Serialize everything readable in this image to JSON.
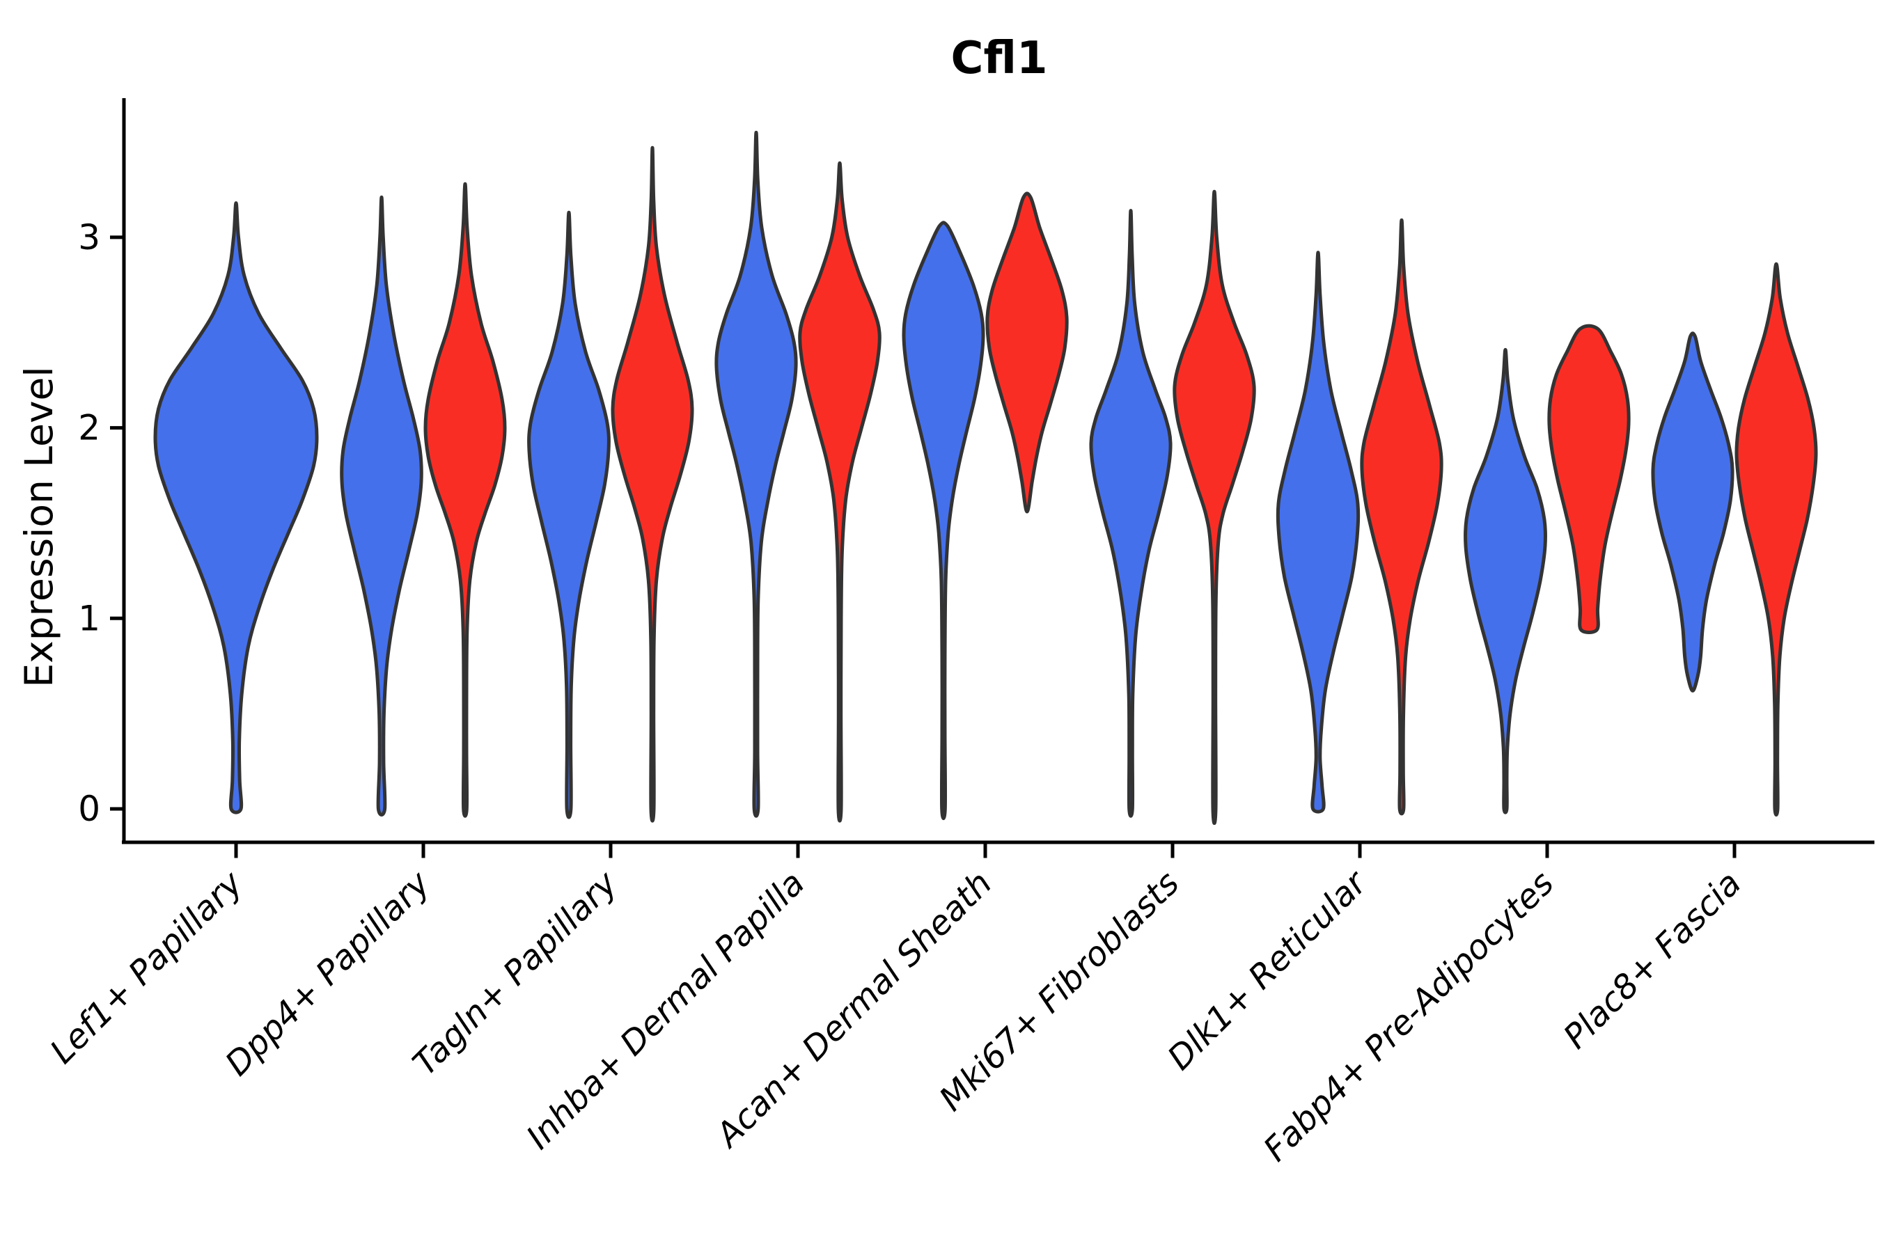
{
  "title": "Cfl1",
  "axes": {
    "ylabel": "Expression Level",
    "yticks": [
      "0",
      "1",
      "2",
      "3"
    ]
  },
  "colors": {
    "blue": "#4570EB",
    "red": "#FA2D25",
    "outline": "#333333",
    "axis": "#000000"
  },
  "chart_data": {
    "type": "violin",
    "title": "Cfl1",
    "ylabel": "Expression Level",
    "ylim": [
      -0.17,
      3.74
    ],
    "yticks": [
      0,
      1,
      2,
      3
    ],
    "grid": false,
    "legend": "none",
    "groups": [
      "blue",
      "red"
    ],
    "categories": [
      "Lef1+ Papillary",
      "Dpp4+ Papillary",
      "Tagln+ Papillary",
      "Inhba+ Dermal Papilla",
      "Acan+ Dermal Sheath",
      "Mki67+ Fibroblasts",
      "Dlk1+ Reticular",
      "Fabp4+ Pre-Adipocytes",
      "Plac8+ Fascia"
    ],
    "violins": [
      {
        "cat": 0,
        "group": "blue",
        "side": 0,
        "width": "full",
        "max": 3.18,
        "min": 0,
        "profile": [
          [
            3.18,
            0
          ],
          [
            3.0,
            0.03
          ],
          [
            2.8,
            0.1
          ],
          [
            2.6,
            0.28
          ],
          [
            2.42,
            0.55
          ],
          [
            2.25,
            0.82
          ],
          [
            2.1,
            0.96
          ],
          [
            1.95,
            1.0
          ],
          [
            1.8,
            0.96
          ],
          [
            1.62,
            0.82
          ],
          [
            1.45,
            0.65
          ],
          [
            1.25,
            0.45
          ],
          [
            1.05,
            0.28
          ],
          [
            0.85,
            0.15
          ],
          [
            0.6,
            0.07
          ],
          [
            0.35,
            0.04
          ],
          [
            0.15,
            0.045
          ],
          [
            0.0,
            0.06
          ]
        ]
      },
      {
        "cat": 1,
        "group": "blue",
        "side": -1,
        "width": "half",
        "max": 3.21,
        "min": 0,
        "profile": [
          [
            3.21,
            0
          ],
          [
            3.0,
            0.04
          ],
          [
            2.75,
            0.12
          ],
          [
            2.5,
            0.3
          ],
          [
            2.25,
            0.55
          ],
          [
            2.05,
            0.8
          ],
          [
            1.88,
            0.97
          ],
          [
            1.72,
            1.0
          ],
          [
            1.55,
            0.9
          ],
          [
            1.35,
            0.68
          ],
          [
            1.15,
            0.45
          ],
          [
            0.95,
            0.26
          ],
          [
            0.75,
            0.13
          ],
          [
            0.5,
            0.06
          ],
          [
            0.25,
            0.05
          ],
          [
            0.0,
            0.08
          ]
        ]
      },
      {
        "cat": 1,
        "group": "red",
        "side": 1,
        "width": "half",
        "max": 3.28,
        "min": 0,
        "profile": [
          [
            3.28,
            0
          ],
          [
            3.05,
            0.05
          ],
          [
            2.8,
            0.16
          ],
          [
            2.55,
            0.4
          ],
          [
            2.35,
            0.7
          ],
          [
            2.15,
            0.93
          ],
          [
            2.0,
            1.0
          ],
          [
            1.85,
            0.93
          ],
          [
            1.7,
            0.75
          ],
          [
            1.55,
            0.5
          ],
          [
            1.4,
            0.28
          ],
          [
            1.2,
            0.12
          ],
          [
            0.95,
            0.05
          ],
          [
            0.6,
            0.035
          ],
          [
            0.3,
            0.035
          ],
          [
            0.0,
            0.04
          ]
        ]
      },
      {
        "cat": 2,
        "group": "blue",
        "side": -1,
        "width": "half",
        "max": 3.13,
        "min": 0,
        "profile": [
          [
            3.13,
            0
          ],
          [
            2.9,
            0.05
          ],
          [
            2.65,
            0.16
          ],
          [
            2.4,
            0.42
          ],
          [
            2.2,
            0.75
          ],
          [
            2.02,
            0.97
          ],
          [
            1.88,
            1.0
          ],
          [
            1.7,
            0.9
          ],
          [
            1.5,
            0.68
          ],
          [
            1.3,
            0.45
          ],
          [
            1.1,
            0.26
          ],
          [
            0.9,
            0.13
          ],
          [
            0.65,
            0.06
          ],
          [
            0.35,
            0.045
          ],
          [
            0.0,
            0.05
          ]
        ]
      },
      {
        "cat": 2,
        "group": "red",
        "side": 1,
        "width": "half",
        "max": 3.47,
        "min": 0,
        "profile": [
          [
            3.47,
            0
          ],
          [
            3.2,
            0.03
          ],
          [
            2.95,
            0.1
          ],
          [
            2.7,
            0.3
          ],
          [
            2.45,
            0.62
          ],
          [
            2.25,
            0.9
          ],
          [
            2.1,
            1.0
          ],
          [
            1.93,
            0.92
          ],
          [
            1.75,
            0.7
          ],
          [
            1.58,
            0.45
          ],
          [
            1.42,
            0.25
          ],
          [
            1.2,
            0.1
          ],
          [
            0.9,
            0.04
          ],
          [
            0.5,
            0.03
          ],
          [
            0.0,
            0.035
          ]
        ]
      },
      {
        "cat": 3,
        "group": "blue",
        "side": -1,
        "width": "half",
        "max": 3.55,
        "min": 0,
        "profile": [
          [
            3.55,
            0
          ],
          [
            3.3,
            0.04
          ],
          [
            3.05,
            0.14
          ],
          [
            2.8,
            0.4
          ],
          [
            2.6,
            0.75
          ],
          [
            2.45,
            0.95
          ],
          [
            2.32,
            1.0
          ],
          [
            2.15,
            0.9
          ],
          [
            1.98,
            0.7
          ],
          [
            1.8,
            0.48
          ],
          [
            1.6,
            0.28
          ],
          [
            1.4,
            0.13
          ],
          [
            1.1,
            0.05
          ],
          [
            0.7,
            0.035
          ],
          [
            0.3,
            0.035
          ],
          [
            0.0,
            0.05
          ]
        ]
      },
      {
        "cat": 3,
        "group": "red",
        "side": 1,
        "width": "half",
        "max": 3.39,
        "min": 0,
        "profile": [
          [
            3.39,
            0
          ],
          [
            3.2,
            0.06
          ],
          [
            3.0,
            0.2
          ],
          [
            2.8,
            0.5
          ],
          [
            2.62,
            0.85
          ],
          [
            2.5,
            1.0
          ],
          [
            2.35,
            0.95
          ],
          [
            2.18,
            0.78
          ],
          [
            2.0,
            0.55
          ],
          [
            1.82,
            0.32
          ],
          [
            1.62,
            0.15
          ],
          [
            1.35,
            0.06
          ],
          [
            1.0,
            0.035
          ],
          [
            0.5,
            0.03
          ],
          [
            0.0,
            0.035
          ]
        ]
      },
      {
        "cat": 4,
        "group": "blue",
        "side": -1,
        "width": "half",
        "max": 3.06,
        "min": 0,
        "profile": [
          [
            3.06,
            0.1
          ],
          [
            2.92,
            0.42
          ],
          [
            2.75,
            0.75
          ],
          [
            2.6,
            0.95
          ],
          [
            2.48,
            1.0
          ],
          [
            2.32,
            0.93
          ],
          [
            2.15,
            0.78
          ],
          [
            1.98,
            0.58
          ],
          [
            1.8,
            0.38
          ],
          [
            1.62,
            0.22
          ],
          [
            1.45,
            0.12
          ],
          [
            1.2,
            0.055
          ],
          [
            0.8,
            0.035
          ],
          [
            0.4,
            0.035
          ],
          [
            0.0,
            0.04
          ]
        ]
      },
      {
        "cat": 4,
        "group": "red",
        "side": 1,
        "width": "half",
        "max": 3.21,
        "min": 1.56,
        "profile": [
          [
            3.21,
            0.09
          ],
          [
            3.05,
            0.32
          ],
          [
            2.88,
            0.62
          ],
          [
            2.72,
            0.88
          ],
          [
            2.58,
            1.0
          ],
          [
            2.42,
            0.95
          ],
          [
            2.28,
            0.8
          ],
          [
            2.12,
            0.58
          ],
          [
            1.98,
            0.38
          ],
          [
            1.85,
            0.24
          ],
          [
            1.72,
            0.13
          ],
          [
            1.56,
            0.0
          ]
        ]
      },
      {
        "cat": 5,
        "group": "blue",
        "side": -1,
        "width": "half",
        "max": 3.14,
        "min": 0,
        "profile": [
          [
            3.14,
            0
          ],
          [
            2.9,
            0.035
          ],
          [
            2.65,
            0.1
          ],
          [
            2.4,
            0.3
          ],
          [
            2.2,
            0.62
          ],
          [
            2.05,
            0.88
          ],
          [
            1.92,
            1.0
          ],
          [
            1.75,
            0.92
          ],
          [
            1.55,
            0.7
          ],
          [
            1.35,
            0.45
          ],
          [
            1.12,
            0.25
          ],
          [
            0.9,
            0.12
          ],
          [
            0.6,
            0.05
          ],
          [
            0.3,
            0.04
          ],
          [
            0.0,
            0.04
          ]
        ]
      },
      {
        "cat": 5,
        "group": "red",
        "side": 1,
        "width": "half",
        "max": 3.24,
        "min": 0,
        "profile": [
          [
            3.24,
            0
          ],
          [
            3.0,
            0.06
          ],
          [
            2.75,
            0.2
          ],
          [
            2.55,
            0.5
          ],
          [
            2.38,
            0.82
          ],
          [
            2.22,
            1.0
          ],
          [
            2.05,
            0.93
          ],
          [
            1.88,
            0.72
          ],
          [
            1.7,
            0.45
          ],
          [
            1.55,
            0.22
          ],
          [
            1.4,
            0.1
          ],
          [
            1.1,
            0.04
          ],
          [
            0.6,
            0.03
          ],
          [
            0.0,
            0.035
          ]
        ]
      },
      {
        "cat": 6,
        "group": "blue",
        "side": -1,
        "width": "half",
        "max": 2.92,
        "min": 0,
        "profile": [
          [
            2.92,
            0
          ],
          [
            2.7,
            0.05
          ],
          [
            2.45,
            0.14
          ],
          [
            2.2,
            0.32
          ],
          [
            1.98,
            0.58
          ],
          [
            1.78,
            0.83
          ],
          [
            1.6,
            1.0
          ],
          [
            1.42,
            0.98
          ],
          [
            1.22,
            0.85
          ],
          [
            1.02,
            0.62
          ],
          [
            0.82,
            0.38
          ],
          [
            0.62,
            0.18
          ],
          [
            0.42,
            0.08
          ],
          [
            0.27,
            0.05
          ],
          [
            0.12,
            0.1
          ],
          [
            0.0,
            0.13
          ]
        ]
      },
      {
        "cat": 6,
        "group": "red",
        "side": 1,
        "width": "half",
        "max": 3.09,
        "min": 0,
        "profile": [
          [
            3.09,
            0
          ],
          [
            2.85,
            0.05
          ],
          [
            2.6,
            0.16
          ],
          [
            2.35,
            0.4
          ],
          [
            2.12,
            0.7
          ],
          [
            1.92,
            0.95
          ],
          [
            1.78,
            1.0
          ],
          [
            1.6,
            0.9
          ],
          [
            1.4,
            0.68
          ],
          [
            1.2,
            0.42
          ],
          [
            1.0,
            0.22
          ],
          [
            0.8,
            0.1
          ],
          [
            0.5,
            0.045
          ],
          [
            0.2,
            0.04
          ],
          [
            0.0,
            0.05
          ]
        ]
      },
      {
        "cat": 7,
        "group": "blue",
        "side": -1,
        "width": "half",
        "max": 2.41,
        "min": 0,
        "profile": [
          [
            2.41,
            0
          ],
          [
            2.25,
            0.06
          ],
          [
            2.05,
            0.2
          ],
          [
            1.85,
            0.48
          ],
          [
            1.68,
            0.8
          ],
          [
            1.52,
            0.98
          ],
          [
            1.38,
            1.0
          ],
          [
            1.2,
            0.88
          ],
          [
            1.02,
            0.68
          ],
          [
            0.85,
            0.46
          ],
          [
            0.68,
            0.26
          ],
          [
            0.5,
            0.12
          ],
          [
            0.32,
            0.05
          ],
          [
            0.15,
            0.035
          ],
          [
            0.0,
            0.035
          ]
        ]
      },
      {
        "cat": 7,
        "group": "red",
        "side": 1,
        "width": "half",
        "max": 2.52,
        "min": 0.94,
        "profile": [
          [
            2.52,
            0.22
          ],
          [
            2.4,
            0.55
          ],
          [
            2.28,
            0.82
          ],
          [
            2.15,
            0.97
          ],
          [
            2.02,
            1.0
          ],
          [
            1.88,
            0.93
          ],
          [
            1.72,
            0.78
          ],
          [
            1.55,
            0.58
          ],
          [
            1.38,
            0.4
          ],
          [
            1.2,
            0.28
          ],
          [
            1.05,
            0.22
          ],
          [
            0.94,
            0.2
          ]
        ]
      },
      {
        "cat": 8,
        "group": "blue",
        "side": -1,
        "width": "half",
        "max": 2.48,
        "min": 0.62,
        "profile": [
          [
            2.48,
            0.06
          ],
          [
            2.35,
            0.2
          ],
          [
            2.2,
            0.45
          ],
          [
            2.05,
            0.72
          ],
          [
            1.9,
            0.92
          ],
          [
            1.78,
            1.0
          ],
          [
            1.62,
            0.95
          ],
          [
            1.45,
            0.78
          ],
          [
            1.28,
            0.55
          ],
          [
            1.1,
            0.35
          ],
          [
            0.95,
            0.25
          ],
          [
            0.8,
            0.2
          ],
          [
            0.7,
            0.13
          ],
          [
            0.62,
            0.0
          ]
        ]
      },
      {
        "cat": 8,
        "group": "red",
        "side": 1,
        "width": "half",
        "max": 2.86,
        "min": 0,
        "profile": [
          [
            2.86,
            0
          ],
          [
            2.68,
            0.1
          ],
          [
            2.5,
            0.28
          ],
          [
            2.32,
            0.55
          ],
          [
            2.15,
            0.8
          ],
          [
            2.0,
            0.95
          ],
          [
            1.86,
            1.0
          ],
          [
            1.7,
            0.93
          ],
          [
            1.52,
            0.78
          ],
          [
            1.35,
            0.58
          ],
          [
            1.18,
            0.38
          ],
          [
            1.0,
            0.2
          ],
          [
            0.8,
            0.09
          ],
          [
            0.55,
            0.04
          ],
          [
            0.25,
            0.03
          ],
          [
            0.0,
            0.035
          ]
        ]
      }
    ]
  }
}
